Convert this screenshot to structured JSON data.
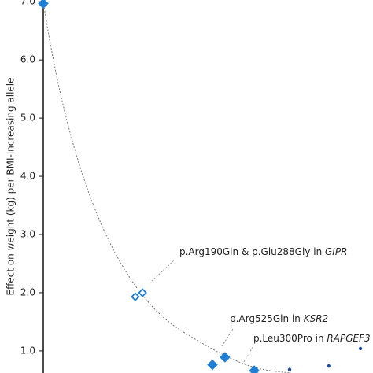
{
  "chart_data": {
    "type": "scatter",
    "ylabel": "Effect on weight (kg) per BMI-increasing allele",
    "ylim": [
      0.62,
      7.03
    ],
    "xlim": [
      0,
      100
    ],
    "yticks": [
      {
        "value": 1,
        "label": "1.0"
      },
      {
        "value": 2,
        "label": "2.0"
      },
      {
        "value": 3,
        "label": "3.0"
      },
      {
        "value": 4,
        "label": "4.0"
      },
      {
        "value": 5,
        "label": "5.0"
      },
      {
        "value": 6,
        "label": "6.0"
      },
      {
        "value": 7,
        "label": "7.0"
      }
    ],
    "series": [
      {
        "color": "#1f7fd6",
        "marker": "diamond",
        "x": [
          0,
          51.3,
          55.1,
          64
        ],
        "values": [
          6.97,
          0.76,
          0.89,
          0.66
        ]
      },
      {
        "color": "#1f7fd6",
        "marker": "diamond-open",
        "x": [
          27.9,
          30.1
        ],
        "values": [
          1.93,
          2.0
        ]
      },
      {
        "color": "#1f4f9e",
        "marker": "dot",
        "x": [
          74.7,
          86.6,
          96.2
        ],
        "values": [
          0.68,
          0.74,
          1.04
        ]
      }
    ],
    "annotations": [
      {
        "text": "p.Arg190Gln & p.Glu288Gly in ",
        "gene": "GIPR"
      },
      {
        "text": "p.Arg525Gln in ",
        "gene": "KSR2"
      },
      {
        "text": "p.Leu300Pro in ",
        "gene": "RAPGEF3"
      }
    ]
  }
}
